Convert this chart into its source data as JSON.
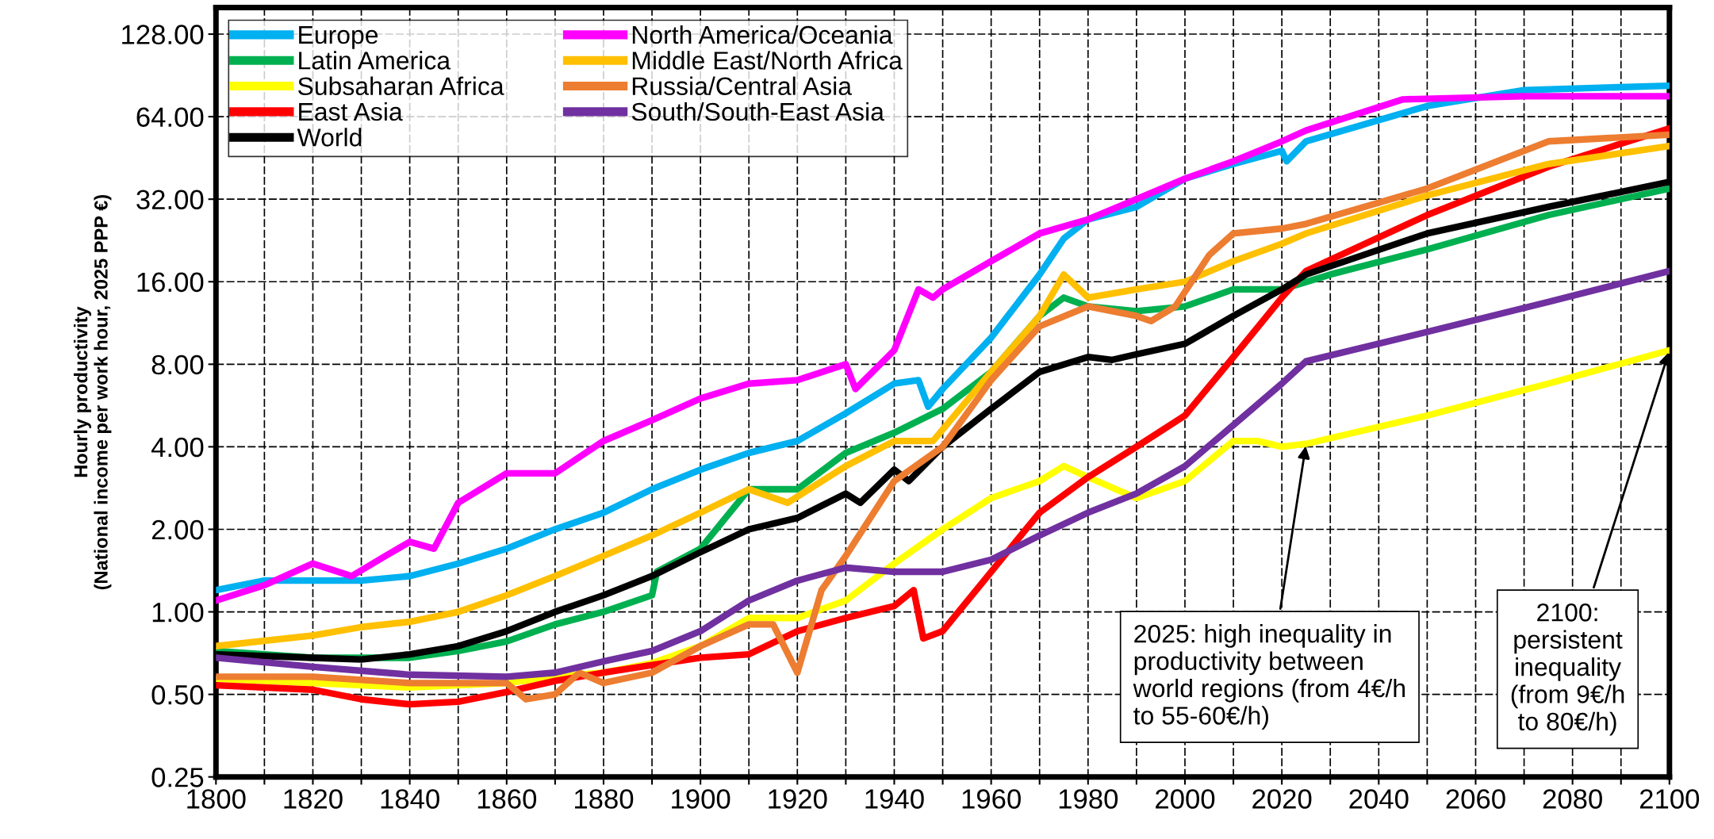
{
  "chart_data": {
    "type": "line",
    "ylabel": "Hourly productivity\n(National income per work hour, 2025 PPP €)",
    "xlim": [
      1800,
      2100
    ],
    "xticks": [
      1800,
      {
        "value": 1810,
        "label": null
      },
      1820,
      {
        "value": 1830,
        "label": null
      },
      1840,
      {
        "value": 1850,
        "label": null
      },
      1860,
      {
        "value": 1870,
        "label": null
      },
      1880,
      {
        "value": 1890,
        "label": null
      },
      1900,
      {
        "value": 1910,
        "label": null
      },
      1920,
      {
        "value": 1930,
        "label": null
      },
      1940,
      {
        "value": 1950,
        "label": null
      },
      1960,
      {
        "value": 1970,
        "label": null
      },
      1980,
      {
        "value": 1990,
        "label": null
      },
      2000,
      {
        "value": 2010,
        "label": null
      },
      2020,
      {
        "value": 2030,
        "label": null
      },
      2040,
      {
        "value": 2050,
        "label": null
      },
      2060,
      {
        "value": 2070,
        "label": null
      },
      2080,
      {
        "value": 2090,
        "label": null
      },
      2100
    ],
    "log": "y",
    "ylim": [
      0.25,
      160
    ],
    "yticks": [
      {
        "value": 0.25,
        "label": "0.25"
      },
      {
        "value": 0.5,
        "label": "0.50"
      },
      {
        "value": 1,
        "label": "1.00"
      },
      {
        "value": 2,
        "label": "2.00"
      },
      {
        "value": 4,
        "label": "4.00"
      },
      {
        "value": 8,
        "label": "8.00"
      },
      {
        "value": 16,
        "label": "16.00"
      },
      {
        "value": 32,
        "label": "32.00"
      },
      {
        "value": 64,
        "label": "64.00"
      },
      {
        "value": 128,
        "label": "128.00"
      }
    ],
    "grid": true,
    "legend": "top left",
    "line_style": "solid",
    "marker": "none",
    "series": [
      {
        "name": "Europe",
        "color": "#00b0f0",
        "x": [
          1800,
          1810,
          1820,
          1830,
          1840,
          1850,
          1860,
          1870,
          1880,
          1890,
          1900,
          1910,
          1920,
          1930,
          1940,
          1945,
          1947,
          1950,
          1960,
          1970,
          1975,
          1980,
          1990,
          2000,
          2010,
          2020,
          2021,
          2025,
          2050,
          2070,
          2100
        ],
        "values": [
          1.2,
          1.3,
          1.3,
          1.3,
          1.35,
          1.5,
          1.7,
          2.0,
          2.3,
          2.8,
          3.3,
          3.8,
          4.2,
          5.3,
          6.8,
          7.0,
          5.6,
          6.5,
          10,
          17,
          23,
          27,
          30,
          38,
          43,
          48,
          44,
          52,
          70,
          80,
          83
        ]
      },
      {
        "name": "Latin America",
        "color": "#00b050",
        "x": [
          1800,
          1820,
          1840,
          1850,
          1860,
          1870,
          1880,
          1890,
          1891,
          1900,
          1910,
          1920,
          1930,
          1940,
          1950,
          1960,
          1970,
          1975,
          1980,
          1990,
          2000,
          2010,
          2020,
          2030,
          2050,
          2075,
          2100
        ],
        "values": [
          0.72,
          0.68,
          0.68,
          0.72,
          0.78,
          0.9,
          1.0,
          1.15,
          1.4,
          1.7,
          2.8,
          2.8,
          3.8,
          4.5,
          5.5,
          7.5,
          12,
          14,
          13,
          12.5,
          13,
          15,
          15,
          17,
          21,
          28,
          35
        ]
      },
      {
        "name": "Subsaharan Africa",
        "color": "#ffff00",
        "x": [
          1800,
          1820,
          1840,
          1860,
          1870,
          1880,
          1890,
          1900,
          1910,
          1920,
          1930,
          1940,
          1950,
          1960,
          1970,
          1975,
          1980,
          1990,
          2000,
          2010,
          2015,
          2020,
          2025,
          2050,
          2075,
          2100
        ],
        "values": [
          0.57,
          0.55,
          0.53,
          0.55,
          0.58,
          0.6,
          0.65,
          0.75,
          0.95,
          0.95,
          1.1,
          1.5,
          2.0,
          2.6,
          3.0,
          3.4,
          3.1,
          2.6,
          3.0,
          4.2,
          4.2,
          4.0,
          4.1,
          5.2,
          6.8,
          9.0
        ]
      },
      {
        "name": "East Asia",
        "color": "#ff0000",
        "x": [
          1800,
          1820,
          1830,
          1840,
          1850,
          1860,
          1870,
          1880,
          1890,
          1900,
          1910,
          1920,
          1930,
          1940,
          1944,
          1946,
          1950,
          1960,
          1970,
          1980,
          1990,
          2000,
          2010,
          2020,
          2025,
          2050,
          2075,
          2100
        ],
        "values": [
          0.54,
          0.52,
          0.48,
          0.46,
          0.47,
          0.51,
          0.56,
          0.6,
          0.64,
          0.68,
          0.7,
          0.85,
          0.95,
          1.05,
          1.2,
          0.8,
          0.85,
          1.4,
          2.3,
          3.1,
          4.0,
          5.2,
          8.5,
          14,
          17.5,
          28,
          42,
          58
        ]
      },
      {
        "name": "World",
        "color": "#000000",
        "x": [
          1800,
          1820,
          1830,
          1840,
          1850,
          1860,
          1870,
          1880,
          1890,
          1900,
          1910,
          1920,
          1930,
          1933,
          1940,
          1943,
          1950,
          1960,
          1970,
          1980,
          1985,
          1990,
          2000,
          2010,
          2020,
          2025,
          2050,
          2075,
          2100
        ],
        "values": [
          0.7,
          0.68,
          0.67,
          0.7,
          0.75,
          0.85,
          1.0,
          1.15,
          1.35,
          1.65,
          2.0,
          2.2,
          2.7,
          2.5,
          3.3,
          3.0,
          4.0,
          5.5,
          7.5,
          8.5,
          8.3,
          8.7,
          9.5,
          12,
          15,
          17,
          24,
          30,
          37
        ]
      },
      {
        "name": "North America/Oceania",
        "color": "#ff00ff",
        "x": [
          1800,
          1810,
          1820,
          1828,
          1835,
          1840,
          1845,
          1850,
          1860,
          1870,
          1880,
          1890,
          1900,
          1910,
          1920,
          1930,
          1932,
          1940,
          1945,
          1948,
          1950,
          1960,
          1970,
          1980,
          1990,
          2000,
          2010,
          2020,
          2025,
          2045,
          2070,
          2100
        ],
        "values": [
          1.1,
          1.25,
          1.5,
          1.35,
          1.6,
          1.8,
          1.7,
          2.5,
          3.2,
          3.2,
          4.2,
          5.0,
          6.0,
          6.8,
          7.0,
          8.0,
          6.5,
          9,
          15,
          14,
          15,
          19,
          24,
          27,
          32,
          38,
          44,
          52,
          57,
          74,
          76,
          76
        ]
      },
      {
        "name": "Middle East/North Africa",
        "color": "#ffc000",
        "x": [
          1800,
          1820,
          1830,
          1840,
          1850,
          1860,
          1870,
          1880,
          1890,
          1900,
          1910,
          1918,
          1930,
          1940,
          1948,
          1960,
          1970,
          1975,
          1980,
          1990,
          2000,
          2010,
          2020,
          2025,
          2050,
          2075,
          2100
        ],
        "values": [
          0.75,
          0.82,
          0.88,
          0.92,
          1.0,
          1.15,
          1.35,
          1.6,
          1.9,
          2.3,
          2.8,
          2.5,
          3.4,
          4.2,
          4.2,
          7.5,
          12,
          17,
          14,
          15,
          16,
          19,
          22,
          24,
          33,
          43,
          50
        ]
      },
      {
        "name": "Russia/Central Asia",
        "color": "#ed7d31",
        "x": [
          1800,
          1820,
          1840,
          1860,
          1864,
          1870,
          1875,
          1880,
          1890,
          1900,
          1910,
          1915,
          1920,
          1925,
          1930,
          1940,
          1950,
          1960,
          1970,
          1980,
          1990,
          1993,
          1998,
          2005,
          2010,
          2020,
          2025,
          2050,
          2075,
          2100
        ],
        "values": [
          0.58,
          0.58,
          0.55,
          0.55,
          0.48,
          0.5,
          0.6,
          0.55,
          0.6,
          0.75,
          0.9,
          0.9,
          0.6,
          1.2,
          1.6,
          3.0,
          4.0,
          7,
          11,
          13,
          12,
          11.5,
          13,
          20,
          24,
          25,
          26,
          35,
          52,
          55
        ]
      },
      {
        "name": "South/South-East Asia",
        "color": "#7030a0",
        "x": [
          1800,
          1820,
          1840,
          1860,
          1870,
          1880,
          1890,
          1900,
          1910,
          1920,
          1930,
          1940,
          1950,
          1960,
          1970,
          1980,
          1990,
          2000,
          2010,
          2020,
          2025,
          2050,
          2075,
          2100
        ],
        "values": [
          0.68,
          0.63,
          0.59,
          0.58,
          0.6,
          0.66,
          0.72,
          0.85,
          1.1,
          1.3,
          1.45,
          1.4,
          1.4,
          1.55,
          1.9,
          2.3,
          2.7,
          3.4,
          4.8,
          6.8,
          8.2,
          10.5,
          13.5,
          17.5
        ]
      }
    ],
    "annotations": [
      {
        "text": "2025: high inequality in\nproductivity between\nworld regions (from 4€/h\nto 55-60€/h)",
        "x": 2025,
        "y": 4.1
      },
      {
        "text": "2100:\npersistent\ninequality\n(from 9€/h\nto 80€/h)",
        "x": 2100,
        "y": 9.0
      }
    ]
  }
}
